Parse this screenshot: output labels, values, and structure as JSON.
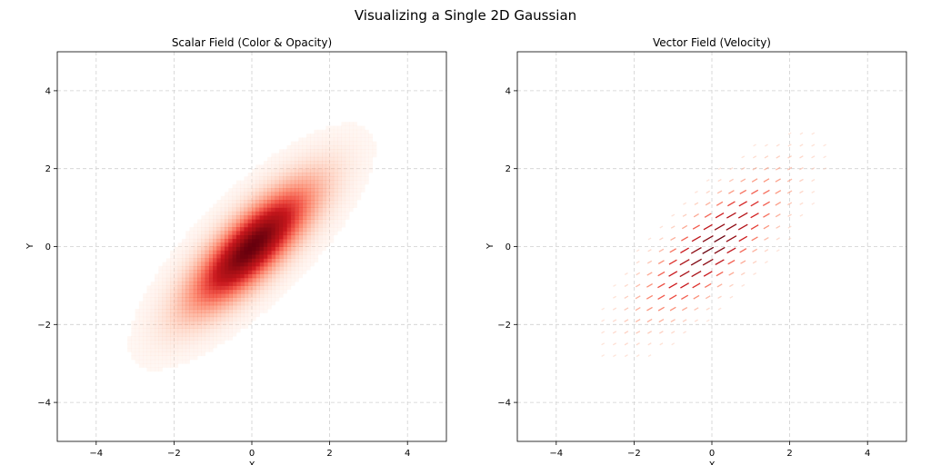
{
  "figure": {
    "title": "Visualizing a Single 2D Gaussian"
  },
  "chart_data": [
    {
      "type": "heatmap",
      "title": "Scalar Field (Color & Opacity)",
      "xlabel": "X",
      "ylabel": "Y",
      "xlim": [
        -5,
        5
      ],
      "ylim": [
        -5,
        5
      ],
      "xticks": [
        -4,
        -2,
        0,
        2,
        4
      ],
      "yticks": [
        -4,
        -2,
        0,
        2,
        4
      ],
      "xtick_labels": [
        "−4",
        "−2",
        "0",
        "2",
        "4"
      ],
      "ytick_labels": [
        "−4",
        "−2",
        "0",
        "2",
        "4"
      ],
      "grid": true,
      "colormap": "Reds",
      "gaussian": {
        "mean": [
          0,
          0
        ],
        "sigma_major": 1.6,
        "sigma_minor": 0.55,
        "angle_deg": 45
      },
      "cutoff_density": 0.03
    },
    {
      "type": "quiver",
      "title": "Vector Field (Velocity)",
      "xlabel": "X",
      "ylabel": "Y",
      "xlim": [
        -5,
        5
      ],
      "ylim": [
        -5,
        5
      ],
      "xticks": [
        -4,
        -2,
        0,
        2,
        4
      ],
      "yticks": [
        -4,
        -2,
        0,
        2,
        4
      ],
      "xtick_labels": [
        "−4",
        "−2",
        "0",
        "2",
        "4"
      ],
      "ytick_labels": [
        "−4",
        "−2",
        "0",
        "2",
        "4"
      ],
      "grid": true,
      "colormap": "Reds",
      "gaussian": {
        "mean": [
          0,
          0
        ],
        "sigma_major": 1.6,
        "sigma_minor": 0.55,
        "angle_deg": 45
      },
      "arrow_grid_step": 0.3,
      "arrow_direction_deg": 30,
      "cutoff_density": 0.04
    }
  ]
}
